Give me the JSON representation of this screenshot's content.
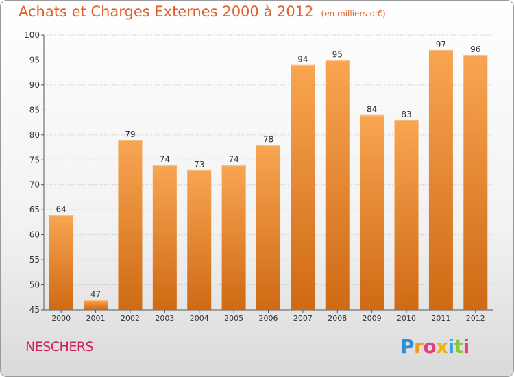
{
  "header": {
    "title": "Achats et Charges Externes 2000 à 2012",
    "unit": "(en milliers d'€)"
  },
  "footer": {
    "city": "NESCHERS",
    "brand": {
      "letters": [
        "P",
        "r",
        "o",
        "x",
        "i",
        "t",
        "i"
      ],
      "colors": [
        "#2a8fd6",
        "#f39a1e",
        "#e63d7f",
        "#f2b200",
        "#38a3e0",
        "#8cc63f",
        "#e63d7f"
      ]
    }
  },
  "colors": {
    "bar_top": "#f8a552",
    "bar_bottom": "#cf6a14",
    "bar_highlight": "#fbc080",
    "title": "#e0602a",
    "city": "#d2205a",
    "axis": "#555555",
    "grid": "#cfcfcf"
  },
  "chart_data": {
    "type": "bar",
    "title": "Achats et Charges Externes 2000 à 2012",
    "subtitle": "(en milliers d'€)",
    "categories": [
      "2000",
      "2001",
      "2002",
      "2003",
      "2004",
      "2005",
      "2006",
      "2007",
      "2008",
      "2009",
      "2010",
      "2011",
      "2012"
    ],
    "values": [
      64,
      47,
      79,
      74,
      73,
      74,
      78,
      94,
      95,
      84,
      83,
      97,
      96
    ],
    "ylim": [
      45,
      100
    ],
    "yticks": [
      45,
      50,
      55,
      60,
      65,
      70,
      75,
      80,
      85,
      90,
      95,
      100
    ],
    "grid": true,
    "xlabel": "",
    "ylabel": ""
  }
}
